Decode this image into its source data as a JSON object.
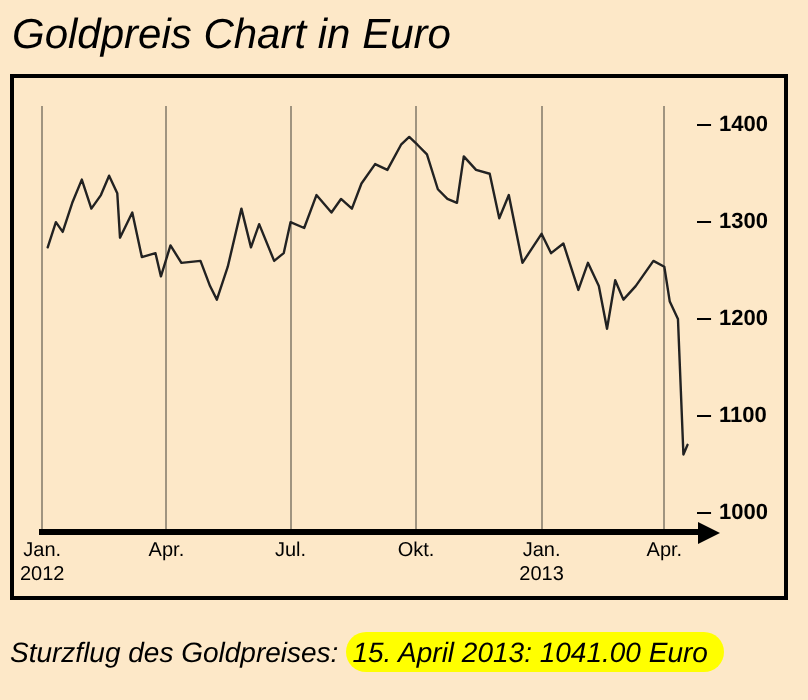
{
  "chart_data": {
    "type": "line",
    "title": "Goldpreis Chart in Euro",
    "annotations": [
      "Sturzflug des Goldpreises:",
      "15. April 2013: 1041.00 Euro"
    ],
    "x": [
      "2012-01-05",
      "2012-01-11",
      "2012-01-16",
      "2012-01-23",
      "2012-01-30",
      "2012-02-06",
      "2012-02-13",
      "2012-02-19",
      "2012-02-25",
      "2012-02-27",
      "2012-03-07",
      "2012-03-14",
      "2012-03-24",
      "2012-03-28",
      "2012-04-04",
      "2012-04-12",
      "2012-04-26",
      "2012-05-03",
      "2012-05-08",
      "2012-05-16",
      "2012-05-26",
      "2012-06-02",
      "2012-06-08",
      "2012-06-19",
      "2012-06-26",
      "2012-07-01",
      "2012-07-11",
      "2012-07-20",
      "2012-07-31",
      "2012-08-07",
      "2012-08-15",
      "2012-08-22",
      "2012-09-01",
      "2012-09-10",
      "2012-09-20",
      "2012-09-26",
      "2012-10-02",
      "2012-10-09",
      "2012-10-17",
      "2012-10-24",
      "2012-10-31",
      "2012-11-05",
      "2012-11-14",
      "2012-11-24",
      "2012-12-01",
      "2012-12-08",
      "2012-12-18",
      "2013-01-01",
      "2013-01-08",
      "2013-01-17",
      "2013-01-28",
      "2013-02-04",
      "2013-02-12",
      "2013-02-18",
      "2013-02-24",
      "2013-03-02",
      "2013-03-11",
      "2013-03-24",
      "2013-04-01",
      "2013-04-05",
      "2013-04-11",
      "2013-04-15",
      "2013-04-18"
    ],
    "series": [
      {
        "color": "#222222",
        "values": [
          1274,
          1300,
          1290,
          1320,
          1344,
          1314,
          1328,
          1348,
          1330,
          1284,
          1310,
          1264,
          1268,
          1244,
          1276,
          1258,
          1260,
          1234,
          1220,
          1254,
          1314,
          1274,
          1298,
          1260,
          1268,
          1300,
          1294,
          1328,
          1310,
          1324,
          1314,
          1340,
          1360,
          1354,
          1380,
          1388,
          1380,
          1370,
          1334,
          1324,
          1320,
          1368,
          1354,
          1350,
          1304,
          1328,
          1258,
          1288,
          1268,
          1278,
          1230,
          1258,
          1234,
          1190,
          1240,
          1220,
          1234,
          1260,
          1254,
          1218,
          1200,
          1060,
          1070
        ]
      }
    ],
    "xlim": [
      "2012-01-01",
      "2013-04-25"
    ],
    "xticks": [
      {
        "value": "2012-01-01",
        "label": "Jan.\n2012"
      },
      {
        "value": "2012-04-01",
        "label": "Apr."
      },
      {
        "value": "2012-07-01",
        "label": "Jul."
      },
      {
        "value": "2012-10-01",
        "label": "Okt."
      },
      {
        "value": "2013-01-01",
        "label": "Jan.\n2013"
      },
      {
        "value": "2013-04-01",
        "label": "Apr."
      }
    ],
    "ylim": [
      980,
      1420
    ],
    "yticks": [
      1000,
      1100,
      1200,
      1300,
      1400
    ],
    "grid": "x",
    "legend": false,
    "marker": "none",
    "line_style": "solid"
  }
}
